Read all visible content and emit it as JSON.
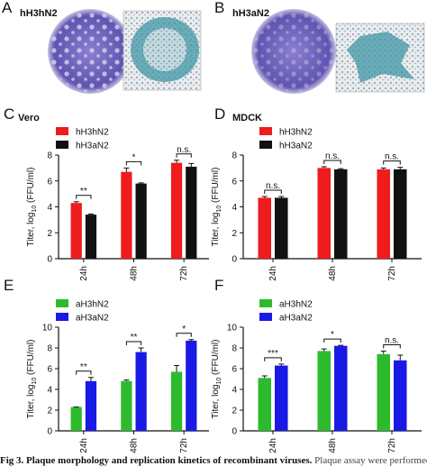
{
  "top_panels": [
    {
      "label": "A",
      "title": "hH3hN2"
    },
    {
      "label": "B",
      "title": "hH3aN2"
    }
  ],
  "chart_data": [
    {
      "type": "bar",
      "label": "C",
      "title": "Vero",
      "ylabel": "Titer, log",
      "ylabel_sub": "10",
      "ylabel_suffix": " (FFU/ml)",
      "categories": [
        "24h",
        "48h",
        "72h"
      ],
      "series": [
        {
          "name": "hH3hN2",
          "color": "#ee1c1c",
          "values": [
            4.3,
            6.7,
            7.4
          ],
          "errors": [
            0.1,
            0.3,
            0.2
          ]
        },
        {
          "name": "hH3aN2",
          "color": "#111111",
          "values": [
            3.4,
            5.8,
            7.1
          ],
          "errors": [
            0.05,
            0.05,
            0.25
          ]
        }
      ],
      "significance": [
        "**",
        "*",
        "n.s."
      ],
      "ylim": [
        0,
        8
      ],
      "yticks": [
        0,
        2,
        4,
        6,
        8
      ]
    },
    {
      "type": "bar",
      "label": "D",
      "title": "MDCK",
      "ylabel": "Titer, log",
      "ylabel_sub": "10",
      "ylabel_suffix": " (FFU/ml)",
      "categories": [
        "24h",
        "48h",
        "72h"
      ],
      "series": [
        {
          "name": "hH3hN2",
          "color": "#ee1c1c",
          "values": [
            4.7,
            7.0,
            6.9
          ],
          "errors": [
            0.1,
            0.1,
            0.1
          ]
        },
        {
          "name": "hH3aN2",
          "color": "#111111",
          "values": [
            4.7,
            6.9,
            6.9
          ],
          "errors": [
            0.1,
            0.05,
            0.15
          ]
        }
      ],
      "significance": [
        "n.s.",
        "n.s.",
        "n.s."
      ],
      "ylim": [
        0,
        8
      ],
      "yticks": [
        0,
        2,
        4,
        6,
        8
      ]
    },
    {
      "type": "bar",
      "label": "E",
      "ylabel": "Titer, log",
      "ylabel_sub": "10",
      "ylabel_suffix": " (FFU/ml)",
      "categories": [
        "24h",
        "48h",
        "72h"
      ],
      "series": [
        {
          "name": "aH3hN2",
          "color": "#2dbb2d",
          "values": [
            2.3,
            4.8,
            5.7
          ],
          "errors": [
            0,
            0.1,
            0.6
          ]
        },
        {
          "name": "aH3aN2",
          "color": "#1a1ae6",
          "values": [
            4.8,
            7.6,
            8.7
          ],
          "errors": [
            0.35,
            0.4,
            0.1
          ]
        }
      ],
      "significance": [
        "**",
        "**",
        "*"
      ],
      "ylim": [
        0,
        10
      ],
      "yticks": [
        0,
        2,
        4,
        6,
        8,
        10
      ]
    },
    {
      "type": "bar",
      "label": "F",
      "ylabel": "Titer, log",
      "ylabel_sub": "10",
      "ylabel_suffix": " (FFU/ml)",
      "categories": [
        "24h",
        "48h",
        "72h"
      ],
      "series": [
        {
          "name": "aH3hN2",
          "color": "#2dbb2d",
          "values": [
            5.1,
            7.7,
            7.4
          ],
          "errors": [
            0.2,
            0.2,
            0.3
          ]
        },
        {
          "name": "aH3aN2",
          "color": "#1a1ae6",
          "values": [
            6.3,
            8.2,
            6.8
          ],
          "errors": [
            0.15,
            0.05,
            0.5
          ]
        }
      ],
      "significance": [
        "***",
        "*",
        "n.s."
      ],
      "ylim": [
        0,
        10
      ],
      "yticks": [
        0,
        2,
        4,
        6,
        8,
        10
      ]
    }
  ],
  "caption": {
    "bold": "Fig 3. Plaque morphology and replication kinetics of recombinant viruses.",
    "text": " Plaque assay were performed for"
  }
}
